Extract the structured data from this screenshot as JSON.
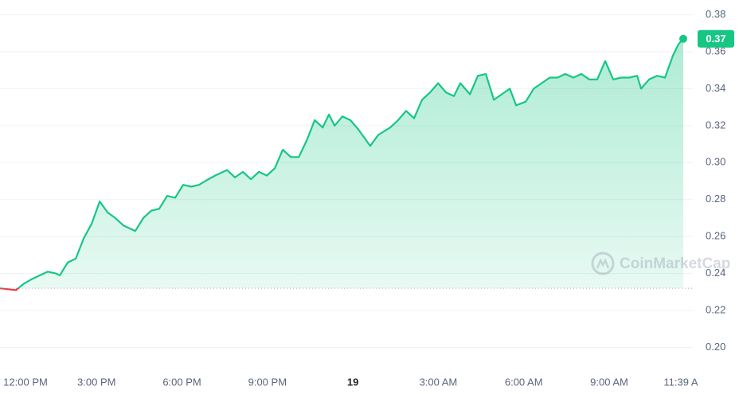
{
  "chart_data": {
    "type": "line",
    "color": "#16c784",
    "below_color": "#ea3943",
    "grid": true,
    "watermark": "CoinMarketCap",
    "current_price_label": "0.37",
    "x": [
      -0.39,
      -0.11,
      0.17,
      0.45,
      0.73,
      1.01,
      1.29,
      1.57,
      1.71,
      1.99,
      2.27,
      2.55,
      2.83,
      3.11,
      3.39,
      3.66,
      3.94,
      4.36,
      4.64,
      4.92,
      5.2,
      5.48,
      5.76,
      6.04,
      6.32,
      6.6,
      6.88,
      7.16,
      7.58,
      7.86,
      8.14,
      8.42,
      8.7,
      8.98,
      9.26,
      9.54,
      9.82,
      10.1,
      10.38,
      10.66,
      10.94,
      11.16,
      11.36,
      11.63,
      11.91,
      12.19,
      12.61,
      12.89,
      13.31,
      13.59,
      13.87,
      14.15,
      14.43,
      14.71,
      14.99,
      15.27,
      15.55,
      15.77,
      16.11,
      16.39,
      16.67,
      16.95,
      17.23,
      17.51,
      17.73,
      18.07,
      18.35,
      18.63,
      18.91,
      19.18,
      19.46,
      19.74,
      20.02,
      20.3,
      20.58,
      20.86,
      21.14,
      21.42,
      21.7,
      21.98,
      22.12,
      22.4,
      22.68,
      22.96,
      23.24,
      23.43,
      23.6
    ],
    "values": [
      0.232,
      0.2315,
      0.231,
      0.2345,
      0.237,
      0.239,
      0.241,
      0.24,
      0.239,
      0.246,
      0.248,
      0.259,
      0.267,
      0.279,
      0.273,
      0.27,
      0.266,
      0.263,
      0.27,
      0.274,
      0.275,
      0.282,
      0.281,
      0.288,
      0.287,
      0.288,
      0.2906,
      0.293,
      0.296,
      0.292,
      0.295,
      0.291,
      0.295,
      0.293,
      0.297,
      0.307,
      0.303,
      0.303,
      0.312,
      0.323,
      0.319,
      0.326,
      0.32,
      0.325,
      0.323,
      0.318,
      0.309,
      0.315,
      0.319,
      0.323,
      0.328,
      0.324,
      0.334,
      0.338,
      0.343,
      0.338,
      0.336,
      0.343,
      0.337,
      0.347,
      0.348,
      0.334,
      0.337,
      0.34,
      0.331,
      0.333,
      0.34,
      0.343,
      0.346,
      0.346,
      0.348,
      0.346,
      0.348,
      0.345,
      0.345,
      0.355,
      0.345,
      0.346,
      0.346,
      0.347,
      0.34,
      0.345,
      0.347,
      0.346,
      0.358,
      0.364,
      0.367
    ],
    "xlim": [
      -0.39,
      23.6
    ],
    "xticks": [
      {
        "value": 0,
        "label": "12:00 PM"
      },
      {
        "value": 3,
        "label": "3:00 PM"
      },
      {
        "value": 6,
        "label": "6:00 PM"
      },
      {
        "value": 9,
        "label": "9:00 PM"
      },
      {
        "value": 12,
        "label": "19"
      },
      {
        "value": 15,
        "label": "3:00 AM"
      },
      {
        "value": 18,
        "label": "6:00 AM"
      },
      {
        "value": 21,
        "label": "9:00 AM"
      },
      {
        "value": 23.6,
        "label": "11:39 A"
      }
    ],
    "ylim": [
      0.189,
      0.388
    ],
    "yticks": [
      {
        "value": 0.2,
        "label": "0.20"
      },
      {
        "value": 0.22,
        "label": "0.22"
      },
      {
        "value": 0.24,
        "label": "0.24"
      },
      {
        "value": 0.26,
        "label": "0.26"
      },
      {
        "value": 0.28,
        "label": "0.28"
      },
      {
        "value": 0.3,
        "label": "0.30"
      },
      {
        "value": 0.32,
        "label": "0.32"
      },
      {
        "value": 0.34,
        "label": "0.34"
      },
      {
        "value": 0.36,
        "label": "0.36"
      },
      {
        "value": 0.38,
        "label": "0.38"
      }
    ]
  }
}
